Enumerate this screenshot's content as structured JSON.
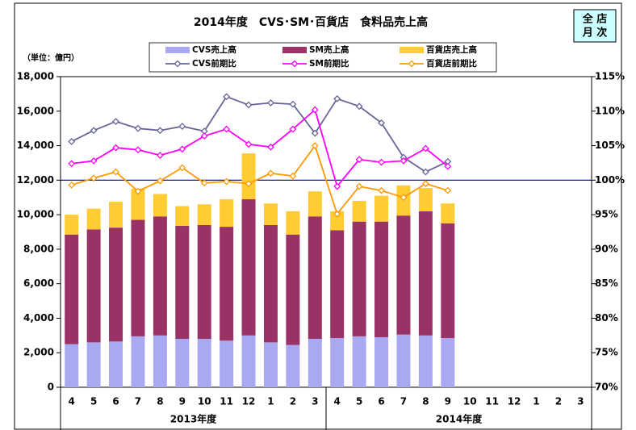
{
  "chart_data": {
    "type": "bar_line",
    "title": "2014年度　CVS･SM･百貨店　食料品売上高",
    "badge": [
      "全 店",
      "月 次"
    ],
    "unit_label": "（単位：億円）",
    "categories": [
      "4",
      "5",
      "6",
      "7",
      "8",
      "9",
      "10",
      "11",
      "12",
      "1",
      "2",
      "3",
      "4",
      "5",
      "6",
      "7",
      "8",
      "9",
      "10",
      "11",
      "12",
      "1",
      "2",
      "3"
    ],
    "group_labels": [
      "2013年度",
      "2014年度"
    ],
    "ylim": [
      0,
      18000
    ],
    "yticks": [
      {
        "value": 0,
        "label": "0"
      },
      {
        "value": 2000,
        "label": "2,000"
      },
      {
        "value": 4000,
        "label": "4,000"
      },
      {
        "value": 6000,
        "label": "6,000"
      },
      {
        "value": 8000,
        "label": "8,000"
      },
      {
        "value": 10000,
        "label": "10,000"
      },
      {
        "value": 12000,
        "label": "12,000"
      },
      {
        "value": 14000,
        "label": "14,000"
      },
      {
        "value": 16000,
        "label": "16,000"
      },
      {
        "value": 18000,
        "label": "18,000"
      }
    ],
    "y2lim": [
      70,
      115
    ],
    "y2ticks": [
      {
        "value": 70,
        "label": "70%"
      },
      {
        "value": 75,
        "label": "75%"
      },
      {
        "value": 80,
        "label": "80%"
      },
      {
        "value": 85,
        "label": "85%"
      },
      {
        "value": 90,
        "label": "90%"
      },
      {
        "value": 95,
        "label": "95%"
      },
      {
        "value": 100,
        "label": "100%"
      },
      {
        "value": 105,
        "label": "105%"
      },
      {
        "value": 110,
        "label": "110%"
      },
      {
        "value": 115,
        "label": "115%"
      }
    ],
    "y2_reference": 100,
    "series": [
      {
        "name": "CVS売上高",
        "kind": "bar",
        "color": "#a9a9f2",
        "values": [
          2500,
          2600,
          2650,
          2950,
          3000,
          2800,
          2800,
          2700,
          3000,
          2600,
          2450,
          2800,
          2850,
          2950,
          2900,
          3050,
          3000,
          2850,
          null,
          null,
          null,
          null,
          null,
          null
        ]
      },
      {
        "name": "SM売上高",
        "kind": "bar",
        "color": "#993366",
        "values": [
          6350,
          6550,
          6600,
          6750,
          6900,
          6550,
          6600,
          6600,
          7900,
          6800,
          6400,
          7100,
          6250,
          6650,
          6700,
          6900,
          7200,
          6650,
          null,
          null,
          null,
          null,
          null,
          null
        ]
      },
      {
        "name": "百貨店売上高",
        "kind": "bar",
        "color": "#ffcc33",
        "values": [
          1150,
          1200,
          1500,
          1800,
          1300,
          1150,
          1200,
          1600,
          2650,
          1250,
          1350,
          1450,
          1100,
          1200,
          1500,
          1750,
          1350,
          1150,
          null,
          null,
          null,
          null,
          null,
          null
        ]
      },
      {
        "name": "CVS前期比",
        "kind": "line",
        "axis": "y2",
        "color": "#666699",
        "values": [
          105.6,
          107.2,
          108.5,
          107.5,
          107.2,
          107.8,
          107.1,
          112.1,
          110.9,
          111.2,
          111.0,
          106.8,
          111.8,
          110.7,
          108.3,
          103.3,
          101.2,
          102.7,
          null,
          null,
          null,
          null,
          null,
          null
        ]
      },
      {
        "name": "SM前期比",
        "kind": "line",
        "axis": "y2",
        "color": "#ff00ff",
        "values": [
          102.4,
          102.8,
          104.7,
          104.4,
          103.6,
          104.5,
          106.4,
          107.4,
          105.2,
          104.8,
          107.4,
          110.2,
          99.1,
          103.0,
          102.6,
          102.8,
          104.6,
          102.0,
          null,
          null,
          null,
          null,
          null,
          null
        ]
      },
      {
        "name": "百貨店前期比",
        "kind": "line",
        "axis": "y2",
        "color": "#ff9900",
        "values": [
          99.3,
          100.3,
          101.2,
          98.4,
          99.9,
          101.8,
          99.6,
          99.8,
          99.5,
          101.0,
          100.6,
          105.0,
          95.1,
          99.1,
          98.5,
          97.5,
          99.5,
          98.5,
          null,
          null,
          null,
          null,
          null,
          null
        ]
      }
    ]
  }
}
